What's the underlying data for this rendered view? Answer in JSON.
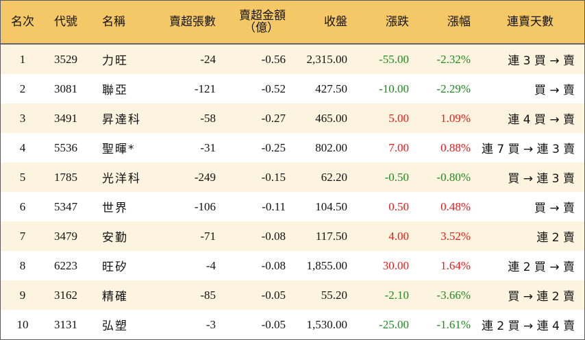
{
  "headers": {
    "rank": "名次",
    "code": "代號",
    "name": "名稱",
    "sell_lots": "賣超張數",
    "sell_amount_line1": "賣超金額",
    "sell_amount_line2": "（億）",
    "close": "收盤",
    "change": "漲跌",
    "pct": "漲幅",
    "streak": "連賣天數"
  },
  "colors": {
    "header_bg": "#f4c867",
    "up": "#e31b1b",
    "down": "#1f8a1f",
    "row_alt": "#fdf4df"
  },
  "rows": [
    {
      "rank": "1",
      "code": "3529",
      "name": "力旺",
      "lots": "-24",
      "amount": "-0.56",
      "close": "2,315.00",
      "change": "-55.00",
      "pct": "-2.32%",
      "dir": "down",
      "streak": "連 3 買 → 賣"
    },
    {
      "rank": "2",
      "code": "3081",
      "name": "聯亞",
      "lots": "-121",
      "amount": "-0.52",
      "close": "427.50",
      "change": "-10.00",
      "pct": "-2.29%",
      "dir": "down",
      "streak": "買 → 賣"
    },
    {
      "rank": "3",
      "code": "3491",
      "name": "昇達科",
      "lots": "-58",
      "amount": "-0.27",
      "close": "465.00",
      "change": "5.00",
      "pct": "1.09%",
      "dir": "up",
      "streak": "連 4 買 → 賣"
    },
    {
      "rank": "4",
      "code": "5536",
      "name": "聖暉*",
      "lots": "-31",
      "amount": "-0.25",
      "close": "802.00",
      "change": "7.00",
      "pct": "0.88%",
      "dir": "up",
      "streak": "連 7 買 → 連 3 賣"
    },
    {
      "rank": "5",
      "code": "1785",
      "name": "光洋科",
      "lots": "-249",
      "amount": "-0.15",
      "close": "62.20",
      "change": "-0.50",
      "pct": "-0.80%",
      "dir": "down",
      "streak": "買 → 連 3 賣"
    },
    {
      "rank": "6",
      "code": "5347",
      "name": "世界",
      "lots": "-106",
      "amount": "-0.11",
      "close": "104.50",
      "change": "0.50",
      "pct": "0.48%",
      "dir": "up",
      "streak": "買 → 賣"
    },
    {
      "rank": "7",
      "code": "3479",
      "name": "安勤",
      "lots": "-71",
      "amount": "-0.08",
      "close": "117.50",
      "change": "4.00",
      "pct": "3.52%",
      "dir": "up",
      "streak": "連 2 賣"
    },
    {
      "rank": "8",
      "code": "6223",
      "name": "旺矽",
      "lots": "-4",
      "amount": "-0.08",
      "close": "1,855.00",
      "change": "30.00",
      "pct": "1.64%",
      "dir": "up",
      "streak": "連 2 買 → 賣"
    },
    {
      "rank": "9",
      "code": "3162",
      "name": "精確",
      "lots": "-85",
      "amount": "-0.05",
      "close": "55.20",
      "change": "-2.10",
      "pct": "-3.66%",
      "dir": "down",
      "streak": "買 → 連 2 賣"
    },
    {
      "rank": "10",
      "code": "3131",
      "name": "弘塑",
      "lots": "-3",
      "amount": "-0.05",
      "close": "1,530.00",
      "change": "-25.00",
      "pct": "-1.61%",
      "dir": "down",
      "streak": "連 2 買 → 連 4 賣"
    }
  ]
}
